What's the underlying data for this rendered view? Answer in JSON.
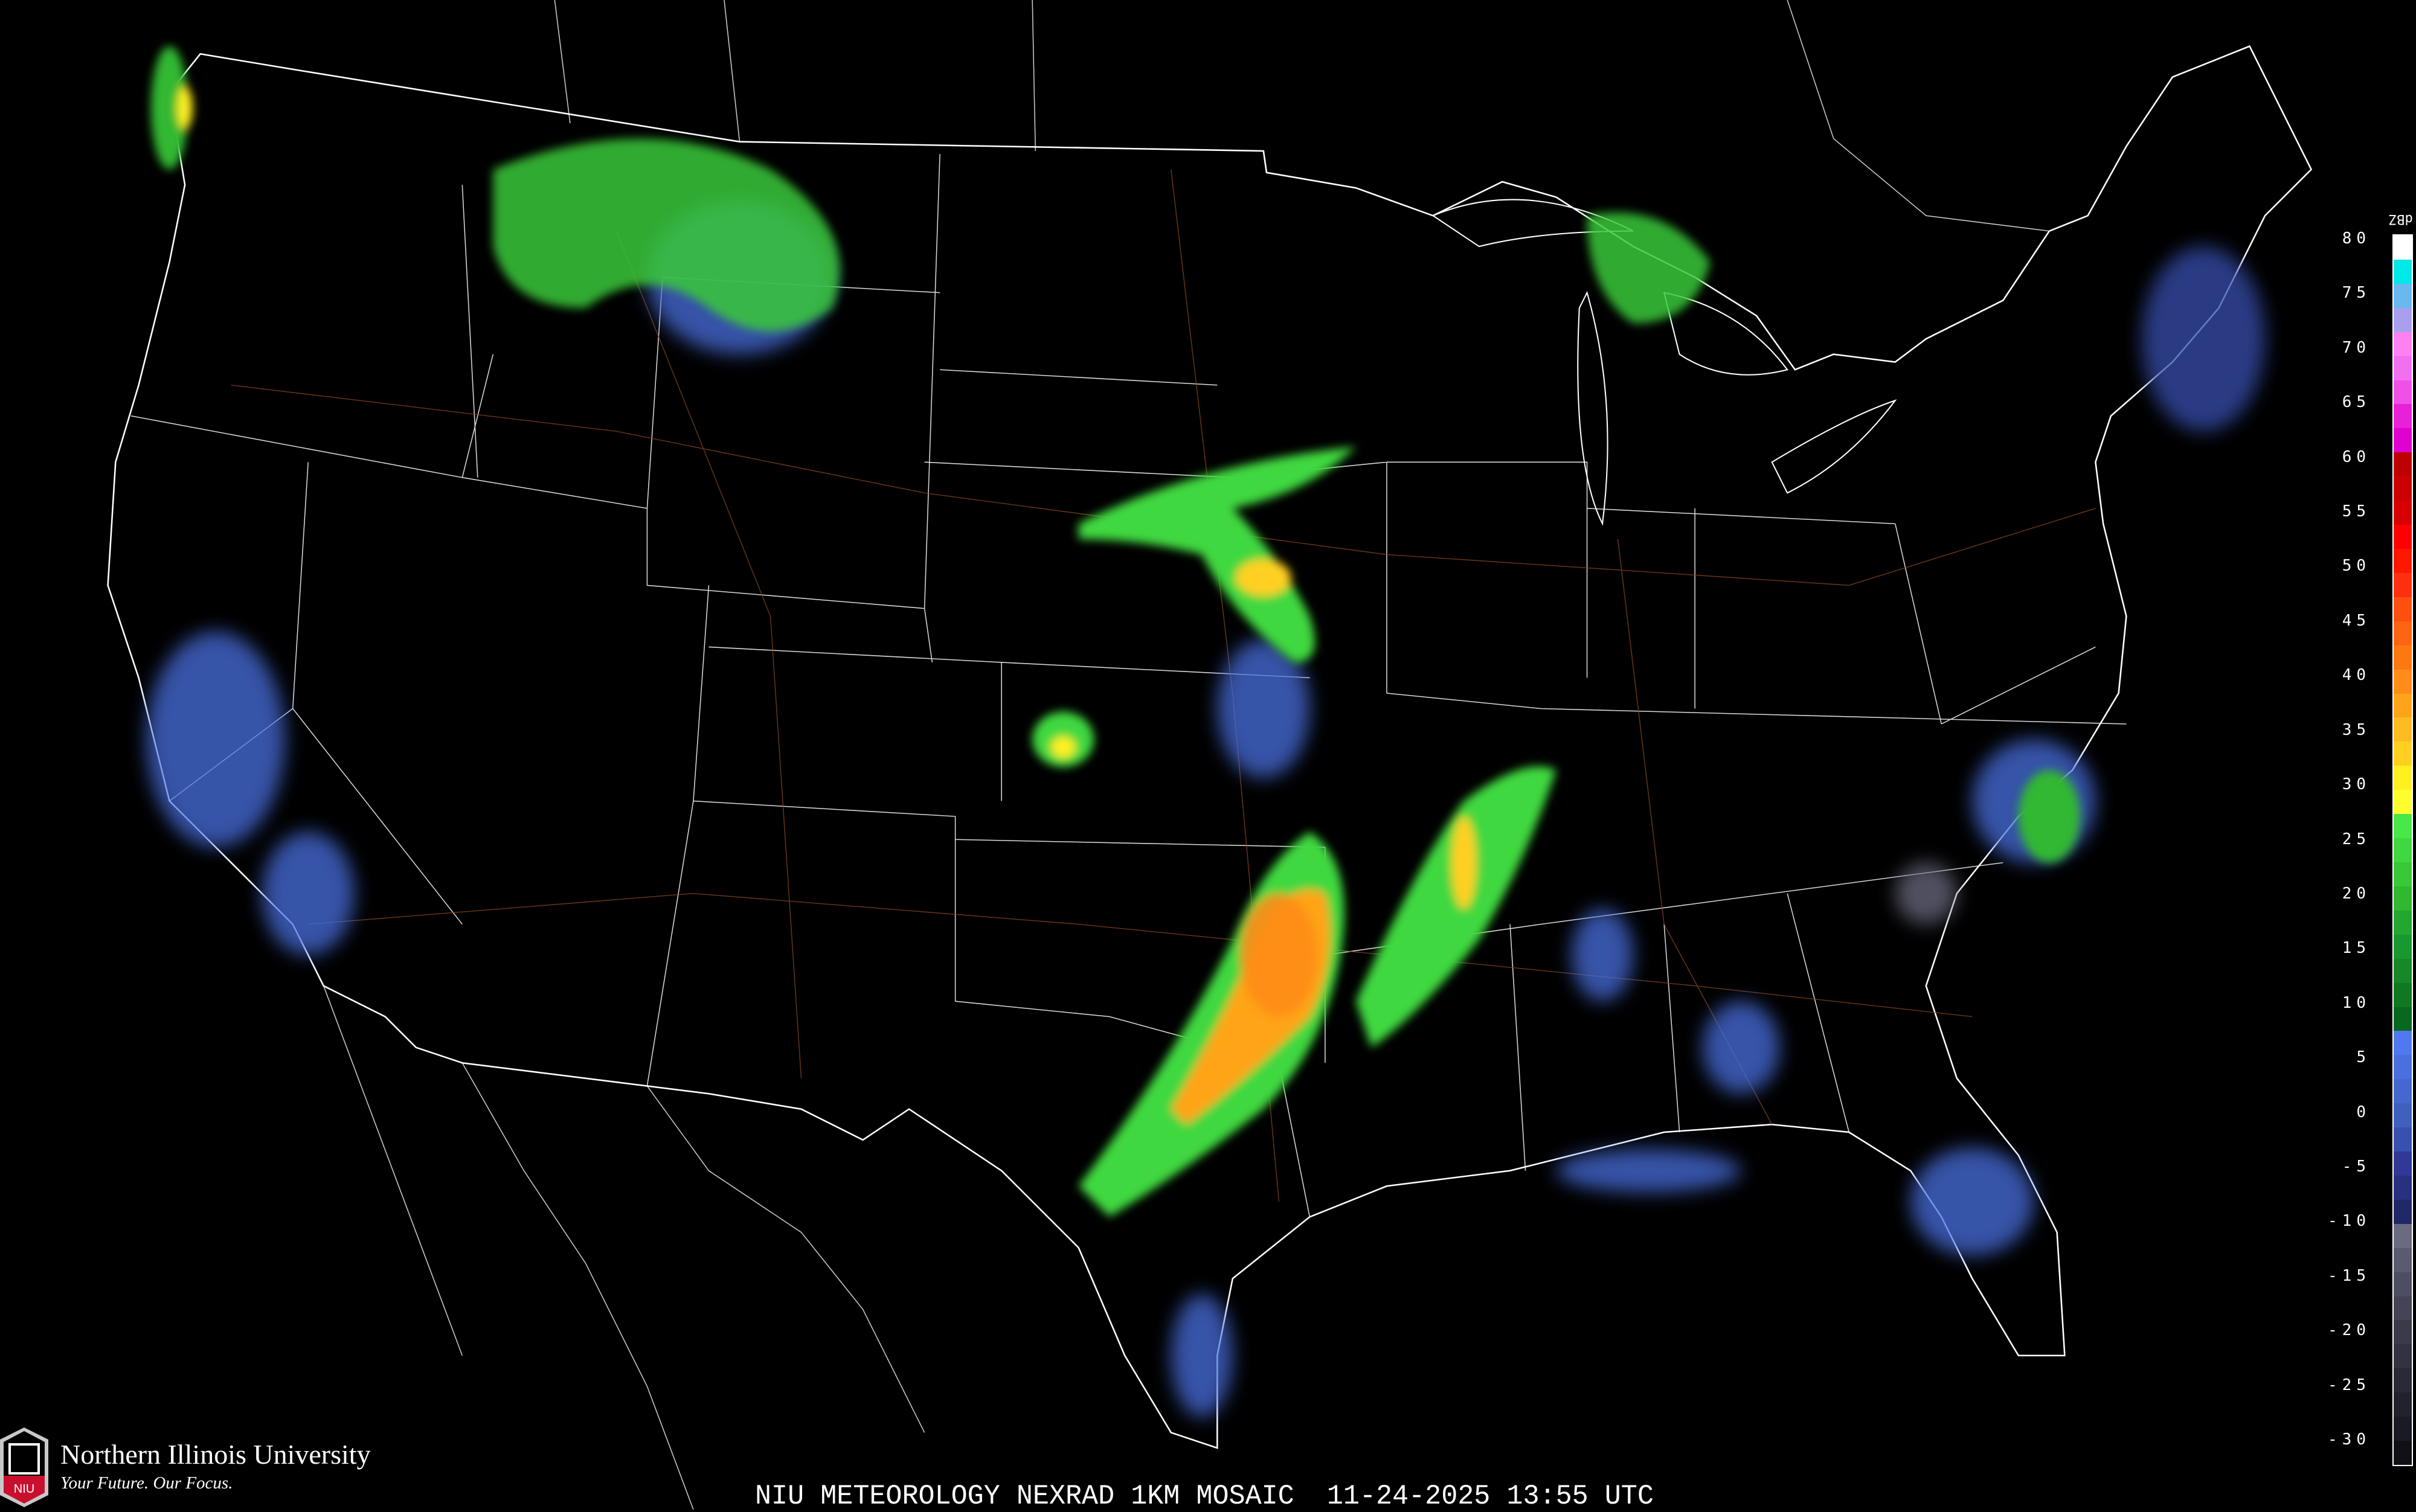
{
  "footer": {
    "title": "NIU METEOROLOGY NEXRAD 1KM MOSAIC  11-24-2025 13:55 UTC"
  },
  "branding": {
    "name": "Northern Illinois University",
    "tagline": "Your Future. Our Focus.",
    "logo_text": "NIU",
    "logo_color": "#c8102e"
  },
  "legend": {
    "unit": "dBZ",
    "ticks": [
      "80",
      "75",
      "70",
      "65",
      "60",
      "55",
      "50",
      "45",
      "40",
      "35",
      "30",
      "25",
      "20",
      "15",
      "10",
      "5",
      "0",
      "-5",
      "-10",
      "-15",
      "-20",
      "-25",
      "-30"
    ],
    "colors": [
      "#ffffff",
      "#00e8e8",
      "#6ab8f0",
      "#a8a0ee",
      "#ff80f0",
      "#f070f0",
      "#f050e8",
      "#e820d8",
      "#e000d0",
      "#c00000",
      "#cc0000",
      "#d80000",
      "#ff0000",
      "#ff1800",
      "#ff3010",
      "#ff5010",
      "#ff6410",
      "#ff7810",
      "#ff8c18",
      "#ffa418",
      "#ffbc20",
      "#ffd020",
      "#fff020",
      "#ffff30",
      "#48e848",
      "#40d840",
      "#38c838",
      "#30b830",
      "#22a830",
      "#1a9830",
      "#168828",
      "#107820",
      "#086820",
      "#5078f0",
      "#4a70e0",
      "#4468d0",
      "#4060c0",
      "#3850b0",
      "#303898",
      "#283080",
      "#202868",
      "#6a6a80",
      "#5a5a70",
      "#4e4e62",
      "#444456",
      "#3a3a4a",
      "#323240",
      "#2a2a36",
      "#22222c",
      "#1a1a22",
      "#101016"
    ]
  },
  "map": {
    "basemap_line_color": "#ffffff",
    "road_color": "#8a4a20"
  }
}
